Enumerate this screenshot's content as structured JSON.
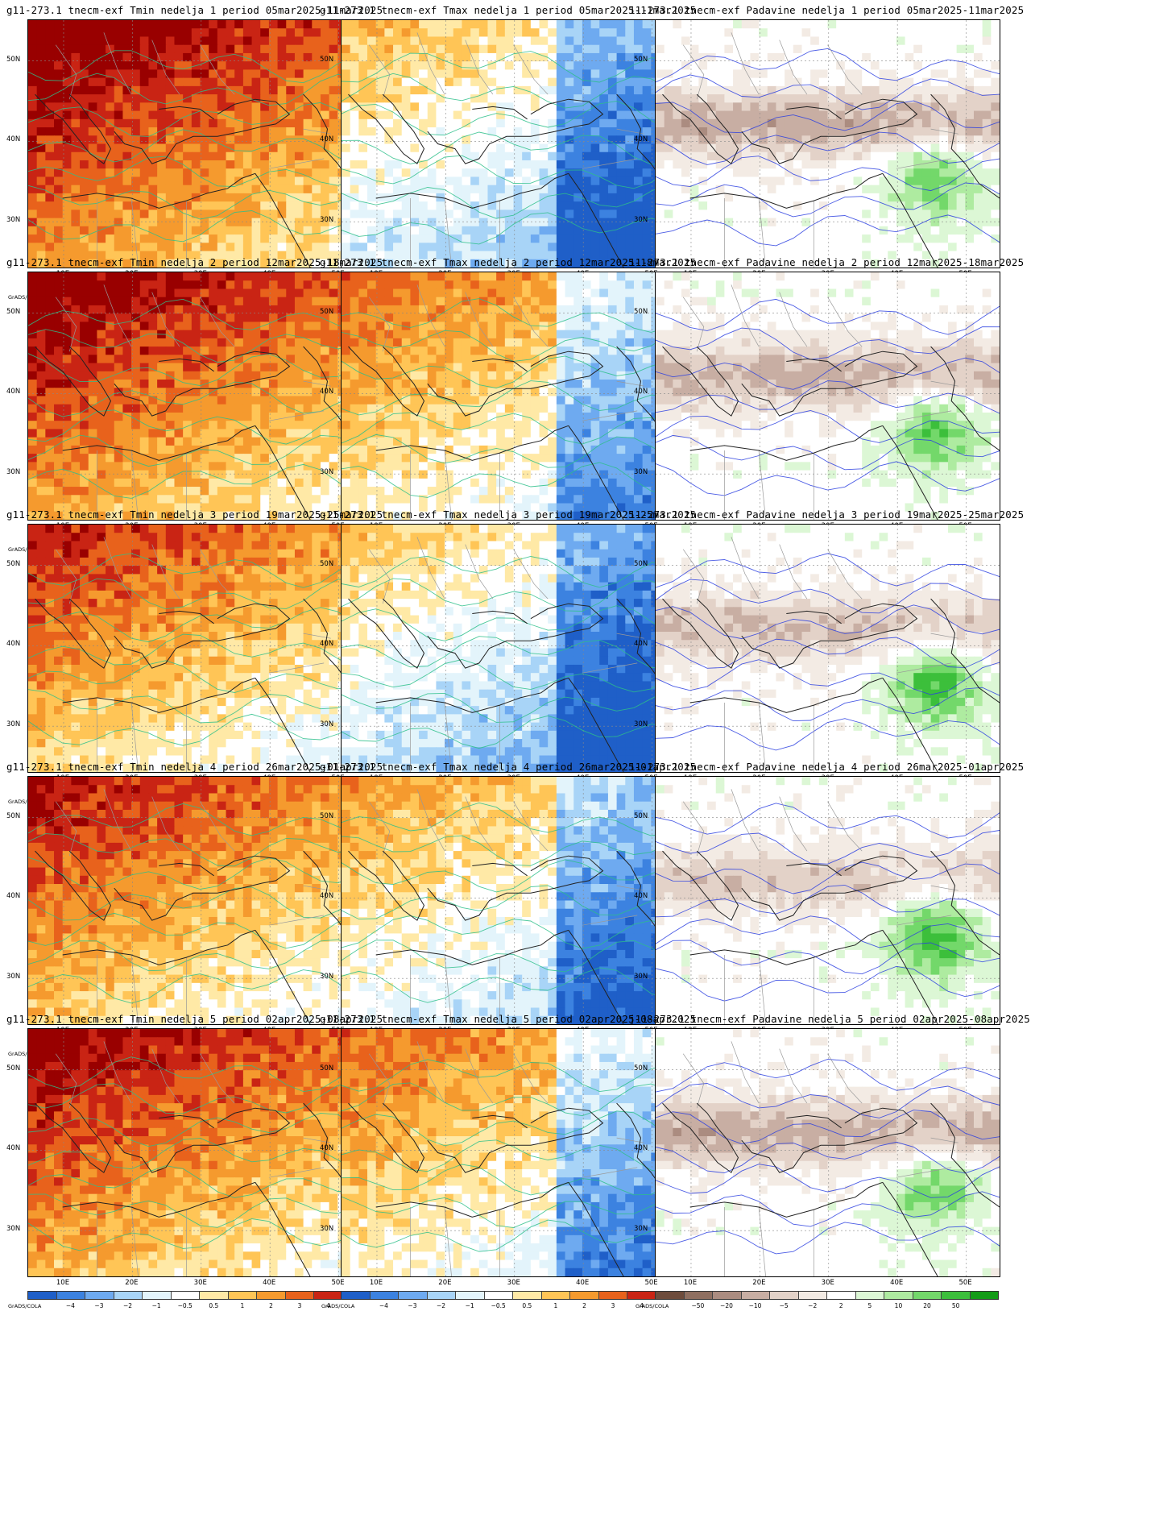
{
  "colors": {
    "temp_scale": [
      "#1f5fc8",
      "#3c82e0",
      "#6eaaf0",
      "#a8d4f7",
      "#e3f4fb",
      "#ffffff",
      "#ffe9a6",
      "#ffc556",
      "#f59a2e",
      "#e8621c",
      "#c92414",
      "#990000"
    ],
    "precip_scale": [
      "#6e4c3c",
      "#8f6f60",
      "#ab8c80",
      "#c8aea3",
      "#e3d2c8",
      "#f3ebe4",
      "#ffffff",
      "#dcf7d5",
      "#aeeba0",
      "#73d86a",
      "#3cbf3b",
      "#139c17"
    ],
    "temp_contour": "#2dbf8a",
    "precip_contour": "#2b3fe0",
    "coast": "#222222",
    "border": "#999999"
  },
  "common": {
    "grads_label": "GrADS/COLA",
    "lat_labels": [
      "50N",
      "40N",
      "30N"
    ],
    "lon_labels": [
      "10E",
      "20E",
      "30E",
      "40E",
      "50E"
    ],
    "temp_ticks": [
      "−4",
      "−3",
      "−2",
      "−1",
      "−0.5",
      "0.5",
      "1",
      "2",
      "3",
      "4"
    ],
    "precip_ticks": [
      "−50",
      "−20",
      "−10",
      "−5",
      "−2",
      "2",
      "5",
      "10",
      "20",
      "50"
    ]
  },
  "panels": [
    {
      "title": "g11-273.1 tnecm-exf Tmin nedelja 1 period 05mar2025-11mar2025",
      "kind": "tmin",
      "anomaly_level": 0.85
    },
    {
      "title": "g11-273.1 tnecm-exf Tmax nedelja 1 period 05mar2025-11mar2025",
      "kind": "tmax",
      "anomaly_level": 0.2
    },
    {
      "title": "11-273.1 tnecm-exf Padavine nedelja 1 period 05mar2025-11mar2025",
      "kind": "precip",
      "anomaly_level": 0.55
    },
    {
      "title": "g11-273.1 tnecm-exf Tmin nedelja 2 period 12mar2025-18mar2025",
      "kind": "tmin",
      "anomaly_level": 0.8
    },
    {
      "title": "g11-273.1 tnecm-exf Tmax nedelja 2 period 12mar2025-18mar2025",
      "kind": "tmax",
      "anomaly_level": 0.45
    },
    {
      "title": "11-273.1 tnecm-exf Padavine nedelja 2 period 12mar2025-18mar2025",
      "kind": "precip",
      "anomaly_level": 0.5
    },
    {
      "title": "g11-273.1 tnecm-exf Tmin nedelja 3 period 19mar2025-25mar2025",
      "kind": "tmin",
      "anomaly_level": 0.6
    },
    {
      "title": "g11-273.1 tnecm-exf Tmax nedelja 3 period 19mar2025-25mar2025",
      "kind": "tmax",
      "anomaly_level": 0.15
    },
    {
      "title": "11-273.1 tnecm-exf Padavine nedelja 3 period 19mar2025-25mar2025",
      "kind": "precip",
      "anomaly_level": 0.45
    },
    {
      "title": "g11-273.1 tnecm-exf Tmin nedelja 4 period 26mar2025-01apr2025",
      "kind": "tmin",
      "anomaly_level": 0.65
    },
    {
      "title": "g11-273.1 tnecm-exf Tmax nedelja 4 period 26mar2025-01apr2025",
      "kind": "tmax",
      "anomaly_level": 0.3
    },
    {
      "title": "11-273.1 tnecm-exf Padavine nedelja 4 period 26mar2025-01apr2025",
      "kind": "precip",
      "anomaly_level": 0.4
    },
    {
      "title": "g11-273.1 tnecm-exf Tmin nedelja 5 period 02apr2025-08apr2025",
      "kind": "tmin",
      "anomaly_level": 0.75
    },
    {
      "title": "g11-273.1 tnecm-exf Tmax nedelja 5 period 02apr2025-08apr2025",
      "kind": "tmax",
      "anomaly_level": 0.45
    },
    {
      "title": "j11-273.1 tnecm-exf Padavine nedelja 5 period 02apr2025-08apr2025",
      "kind": "precip",
      "anomaly_level": 0.55
    }
  ]
}
